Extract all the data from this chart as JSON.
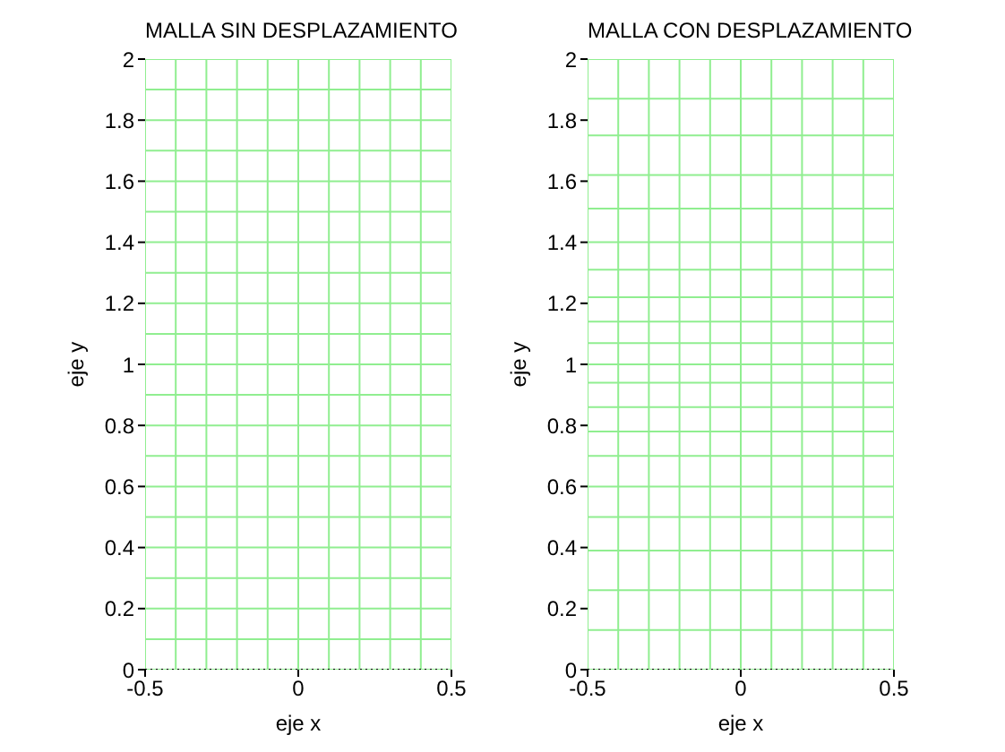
{
  "chart_data": [
    {
      "type": "line",
      "title": "MALLA SIN DESPLAZAMIENTO",
      "xlabel": "eje x",
      "ylabel": "eje y",
      "xlim": [
        -0.5,
        0.5
      ],
      "xticks": [
        -0.5,
        0,
        0.5
      ],
      "ylim": [
        0,
        2
      ],
      "yticks": [
        0,
        0.2,
        0.4,
        0.6,
        0.8,
        1,
        1.2,
        1.4,
        1.6,
        1.8,
        2
      ],
      "series": [
        {
          "color": "#90ee90",
          "x": [
            -0.5,
            -0.5
          ],
          "values": [
            0,
            2
          ]
        },
        {
          "color": "#90ee90",
          "x": [
            -0.4,
            -0.4
          ],
          "values": [
            0,
            2
          ]
        },
        {
          "color": "#90ee90",
          "x": [
            -0.3,
            -0.3
          ],
          "values": [
            0,
            2
          ]
        },
        {
          "color": "#90ee90",
          "x": [
            -0.2,
            -0.2
          ],
          "values": [
            0,
            2
          ]
        },
        {
          "color": "#90ee90",
          "x": [
            -0.1,
            -0.1
          ],
          "values": [
            0,
            2
          ]
        },
        {
          "color": "#90ee90",
          "x": [
            0,
            0
          ],
          "values": [
            0,
            2
          ]
        },
        {
          "color": "#90ee90",
          "x": [
            0.1,
            0.1
          ],
          "values": [
            0,
            2
          ]
        },
        {
          "color": "#90ee90",
          "x": [
            0.2,
            0.2
          ],
          "values": [
            0,
            2
          ]
        },
        {
          "color": "#90ee90",
          "x": [
            0.3,
            0.3
          ],
          "values": [
            0,
            2
          ]
        },
        {
          "color": "#90ee90",
          "x": [
            0.4,
            0.4
          ],
          "values": [
            0,
            2
          ]
        },
        {
          "color": "#90ee90",
          "x": [
            0.5,
            0.5
          ],
          "values": [
            0,
            2
          ]
        },
        {
          "color": "#90ee90",
          "x": [
            -0.5,
            0.5
          ],
          "values": [
            0,
            0
          ]
        },
        {
          "color": "#90ee90",
          "x": [
            -0.5,
            0.5
          ],
          "values": [
            0.1,
            0.1
          ]
        },
        {
          "color": "#90ee90",
          "x": [
            -0.5,
            0.5
          ],
          "values": [
            0.2,
            0.2
          ]
        },
        {
          "color": "#90ee90",
          "x": [
            -0.5,
            0.5
          ],
          "values": [
            0.3,
            0.3
          ]
        },
        {
          "color": "#90ee90",
          "x": [
            -0.5,
            0.5
          ],
          "values": [
            0.4,
            0.4
          ]
        },
        {
          "color": "#90ee90",
          "x": [
            -0.5,
            0.5
          ],
          "values": [
            0.5,
            0.5
          ]
        },
        {
          "color": "#90ee90",
          "x": [
            -0.5,
            0.5
          ],
          "values": [
            0.6,
            0.6
          ]
        },
        {
          "color": "#90ee90",
          "x": [
            -0.5,
            0.5
          ],
          "values": [
            0.7,
            0.7
          ]
        },
        {
          "color": "#90ee90",
          "x": [
            -0.5,
            0.5
          ],
          "values": [
            0.8,
            0.8
          ]
        },
        {
          "color": "#90ee90",
          "x": [
            -0.5,
            0.5
          ],
          "values": [
            0.9,
            0.9
          ]
        },
        {
          "color": "#90ee90",
          "x": [
            -0.5,
            0.5
          ],
          "values": [
            1,
            1
          ]
        },
        {
          "color": "#90ee90",
          "x": [
            -0.5,
            0.5
          ],
          "values": [
            1.1,
            1.1
          ]
        },
        {
          "color": "#90ee90",
          "x": [
            -0.5,
            0.5
          ],
          "values": [
            1.2,
            1.2
          ]
        },
        {
          "color": "#90ee90",
          "x": [
            -0.5,
            0.5
          ],
          "values": [
            1.3,
            1.3
          ]
        },
        {
          "color": "#90ee90",
          "x": [
            -0.5,
            0.5
          ],
          "values": [
            1.4,
            1.4
          ]
        },
        {
          "color": "#90ee90",
          "x": [
            -0.5,
            0.5
          ],
          "values": [
            1.5,
            1.5
          ]
        },
        {
          "color": "#90ee90",
          "x": [
            -0.5,
            0.5
          ],
          "values": [
            1.6,
            1.6
          ]
        },
        {
          "color": "#90ee90",
          "x": [
            -0.5,
            0.5
          ],
          "values": [
            1.7,
            1.7
          ]
        },
        {
          "color": "#90ee90",
          "x": [
            -0.5,
            0.5
          ],
          "values": [
            1.8,
            1.8
          ]
        },
        {
          "color": "#90ee90",
          "x": [
            -0.5,
            0.5
          ],
          "values": [
            1.9,
            1.9
          ]
        },
        {
          "color": "#90ee90",
          "x": [
            -0.5,
            0.5
          ],
          "values": [
            2,
            2
          ]
        },
        {
          "color": "#000000",
          "line_style": "dotted",
          "x": [
            -0.5,
            0.5
          ],
          "values": [
            0,
            0
          ]
        }
      ]
    },
    {
      "type": "line",
      "title": "MALLA CON DESPLAZAMIENTO",
      "xlabel": "eje x",
      "ylabel": "eje y",
      "xlim": [
        -0.5,
        0.5
      ],
      "xticks": [
        -0.5,
        0,
        0.5
      ],
      "ylim": [
        0,
        2
      ],
      "yticks": [
        0,
        0.2,
        0.4,
        0.6,
        0.8,
        1,
        1.2,
        1.4,
        1.6,
        1.8,
        2
      ],
      "series": [
        {
          "color": "#90ee90",
          "x": [
            -0.5,
            -0.5
          ],
          "values": [
            0,
            2
          ]
        },
        {
          "color": "#90ee90",
          "x": [
            -0.4,
            -0.4
          ],
          "values": [
            0,
            2
          ]
        },
        {
          "color": "#90ee90",
          "x": [
            -0.3,
            -0.3
          ],
          "values": [
            0,
            2
          ]
        },
        {
          "color": "#90ee90",
          "x": [
            -0.2,
            -0.2
          ],
          "values": [
            0,
            2
          ]
        },
        {
          "color": "#90ee90",
          "x": [
            -0.1,
            -0.1
          ],
          "values": [
            0,
            2
          ]
        },
        {
          "color": "#90ee90",
          "x": [
            0,
            0
          ],
          "values": [
            0,
            2
          ]
        },
        {
          "color": "#90ee90",
          "x": [
            0.1,
            0.1
          ],
          "values": [
            0,
            2
          ]
        },
        {
          "color": "#90ee90",
          "x": [
            0.2,
            0.2
          ],
          "values": [
            0,
            2
          ]
        },
        {
          "color": "#90ee90",
          "x": [
            0.3,
            0.3
          ],
          "values": [
            0,
            2
          ]
        },
        {
          "color": "#90ee90",
          "x": [
            0.4,
            0.4
          ],
          "values": [
            0,
            2
          ]
        },
        {
          "color": "#90ee90",
          "x": [
            0.5,
            0.5
          ],
          "values": [
            0,
            2
          ]
        },
        {
          "color": "#90ee90",
          "x": [
            -0.5,
            0.5
          ],
          "values": [
            0,
            0
          ]
        },
        {
          "color": "#90ee90",
          "x": [
            -0.5,
            0.5
          ],
          "values": [
            0.13,
            0.13
          ]
        },
        {
          "color": "#90ee90",
          "x": [
            -0.5,
            0.5
          ],
          "values": [
            0.26,
            0.26
          ]
        },
        {
          "color": "#90ee90",
          "x": [
            -0.5,
            0.5
          ],
          "values": [
            0.39,
            0.39
          ]
        },
        {
          "color": "#90ee90",
          "x": [
            -0.5,
            0.5
          ],
          "values": [
            0.5,
            0.5
          ]
        },
        {
          "color": "#90ee90",
          "x": [
            -0.5,
            0.5
          ],
          "values": [
            0.6,
            0.6
          ]
        },
        {
          "color": "#90ee90",
          "x": [
            -0.5,
            0.5
          ],
          "values": [
            0.7,
            0.7
          ]
        },
        {
          "color": "#90ee90",
          "x": [
            -0.5,
            0.5
          ],
          "values": [
            0.78,
            0.78
          ]
        },
        {
          "color": "#90ee90",
          "x": [
            -0.5,
            0.5
          ],
          "values": [
            0.86,
            0.86
          ]
        },
        {
          "color": "#90ee90",
          "x": [
            -0.5,
            0.5
          ],
          "values": [
            0.94,
            0.94
          ]
        },
        {
          "color": "#90ee90",
          "x": [
            -0.5,
            0.5
          ],
          "values": [
            1,
            1
          ]
        },
        {
          "color": "#90ee90",
          "x": [
            -0.5,
            0.5
          ],
          "values": [
            1.07,
            1.07
          ]
        },
        {
          "color": "#90ee90",
          "x": [
            -0.5,
            0.5
          ],
          "values": [
            1.14,
            1.14
          ]
        },
        {
          "color": "#90ee90",
          "x": [
            -0.5,
            0.5
          ],
          "values": [
            1.22,
            1.22
          ]
        },
        {
          "color": "#90ee90",
          "x": [
            -0.5,
            0.5
          ],
          "values": [
            1.31,
            1.31
          ]
        },
        {
          "color": "#90ee90",
          "x": [
            -0.5,
            0.5
          ],
          "values": [
            1.4,
            1.4
          ]
        },
        {
          "color": "#90ee90",
          "x": [
            -0.5,
            0.5
          ],
          "values": [
            1.51,
            1.51
          ]
        },
        {
          "color": "#90ee90",
          "x": [
            -0.5,
            0.5
          ],
          "values": [
            1.62,
            1.62
          ]
        },
        {
          "color": "#90ee90",
          "x": [
            -0.5,
            0.5
          ],
          "values": [
            1.75,
            1.75
          ]
        },
        {
          "color": "#90ee90",
          "x": [
            -0.5,
            0.5
          ],
          "values": [
            1.87,
            1.87
          ]
        },
        {
          "color": "#90ee90",
          "x": [
            -0.5,
            0.5
          ],
          "values": [
            2,
            2
          ]
        },
        {
          "color": "#000000",
          "line_style": "dotted",
          "x": [
            -0.5,
            0.5
          ],
          "values": [
            0,
            0
          ]
        }
      ]
    }
  ]
}
